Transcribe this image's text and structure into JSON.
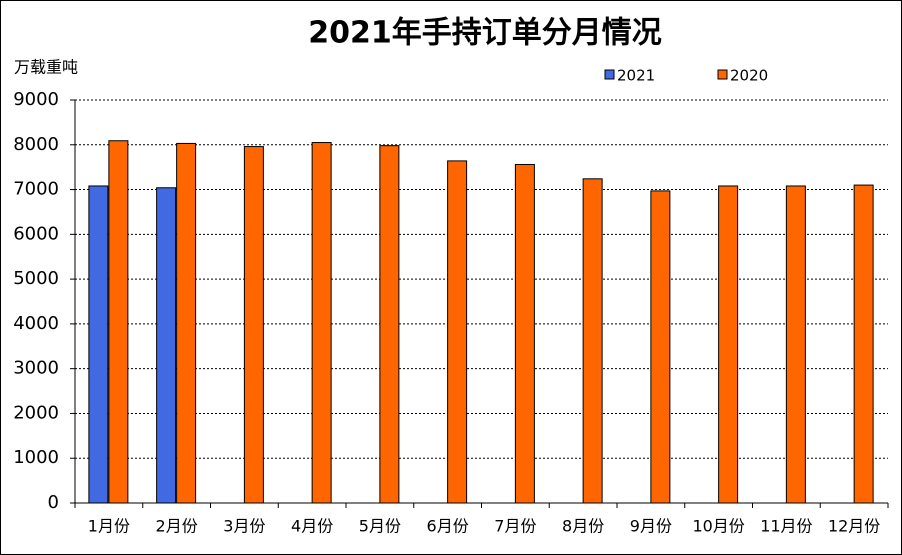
{
  "chart_data": {
    "type": "bar",
    "title": "2021年手持订单分月情况",
    "y_label": "万载重吨",
    "categories": [
      "1月份",
      "2月份",
      "3月份",
      "4月份",
      "5月份",
      "6月份",
      "7月份",
      "8月份",
      "9月份",
      "10月份",
      "11月份",
      "12月份"
    ],
    "series": [
      {
        "name": "2021",
        "color": "#4169e1",
        "values": [
          7080,
          7040,
          null,
          null,
          null,
          null,
          null,
          null,
          null,
          null,
          null,
          null
        ]
      },
      {
        "name": "2020",
        "color": "#ff6600",
        "values": [
          8090,
          8030,
          7960,
          8050,
          7980,
          7640,
          7560,
          7240,
          6970,
          7080,
          7080,
          7100
        ]
      }
    ],
    "ylim": [
      0,
      9000
    ],
    "yticks": [
      0,
      1000,
      2000,
      3000,
      4000,
      5000,
      6000,
      7000,
      8000,
      9000
    ],
    "grid": true
  }
}
